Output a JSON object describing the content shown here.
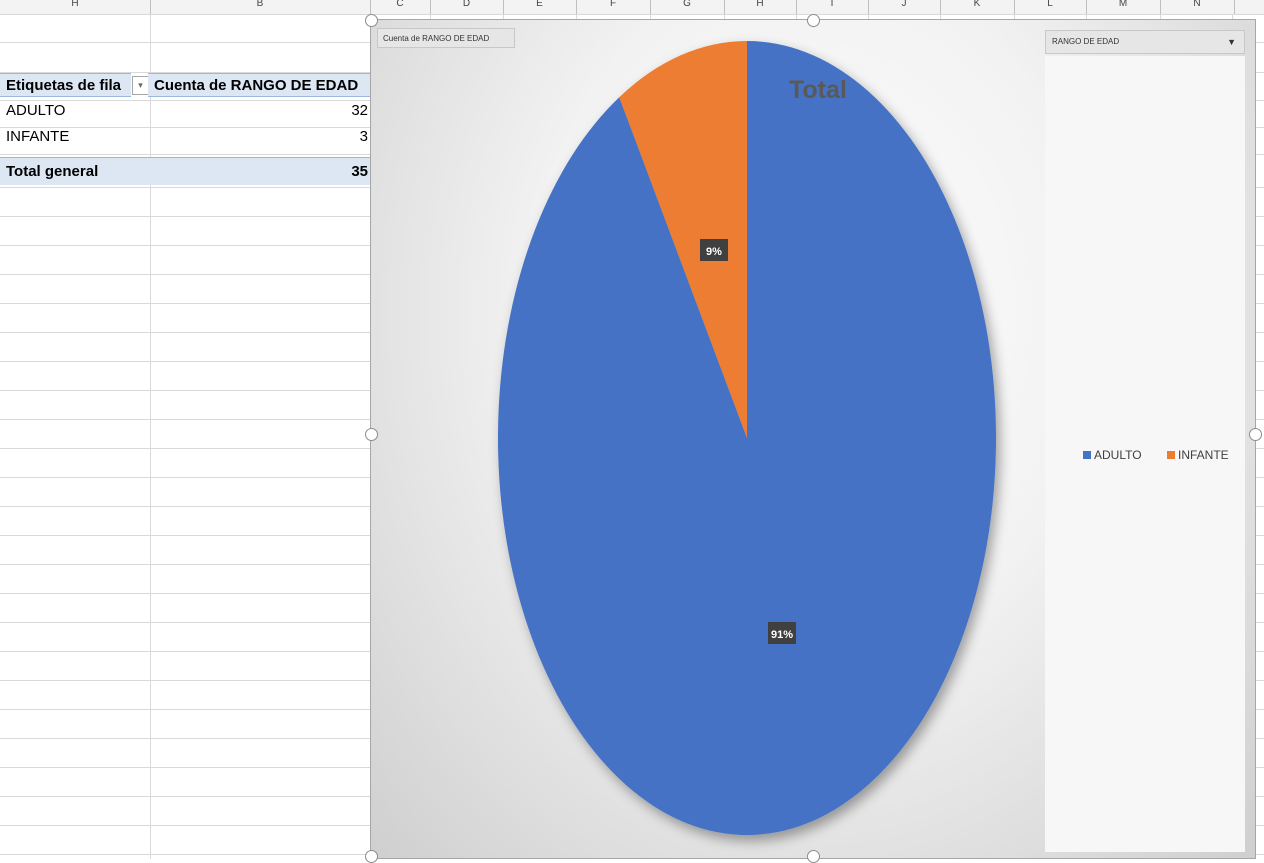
{
  "columns": [
    {
      "letter": "H"
    },
    {
      "letter": "B"
    },
    {
      "letter": "C"
    },
    {
      "letter": "D"
    },
    {
      "letter": "E"
    },
    {
      "letter": "F"
    },
    {
      "letter": "G"
    },
    {
      "letter": "H"
    },
    {
      "letter": "I"
    },
    {
      "letter": "J"
    },
    {
      "letter": "K"
    },
    {
      "letter": "L"
    },
    {
      "letter": "M"
    },
    {
      "letter": "N"
    }
  ],
  "pivot": {
    "row_header": "Etiquetas de fila",
    "value_header": "Cuenta de RANGO DE EDAD",
    "rows": [
      {
        "label": "ADULTO",
        "value": "32"
      },
      {
        "label": "INFANTE",
        "value": "3"
      }
    ],
    "total_label": "Total general",
    "total_value": "35"
  },
  "chart": {
    "value_field_button": "Cuenta de RANGO DE EDAD",
    "axis_field_button": "RANGO DE EDAD",
    "dropdown_arrow": "▼"
  },
  "chart_data": {
    "type": "pie",
    "title": "Total",
    "categories": [
      "ADULTO",
      "INFANTE"
    ],
    "values": [
      32,
      3
    ],
    "data_labels": [
      "91%",
      "9%"
    ],
    "colors": [
      "#4472c4",
      "#ed7d31"
    ],
    "legend": "right"
  }
}
